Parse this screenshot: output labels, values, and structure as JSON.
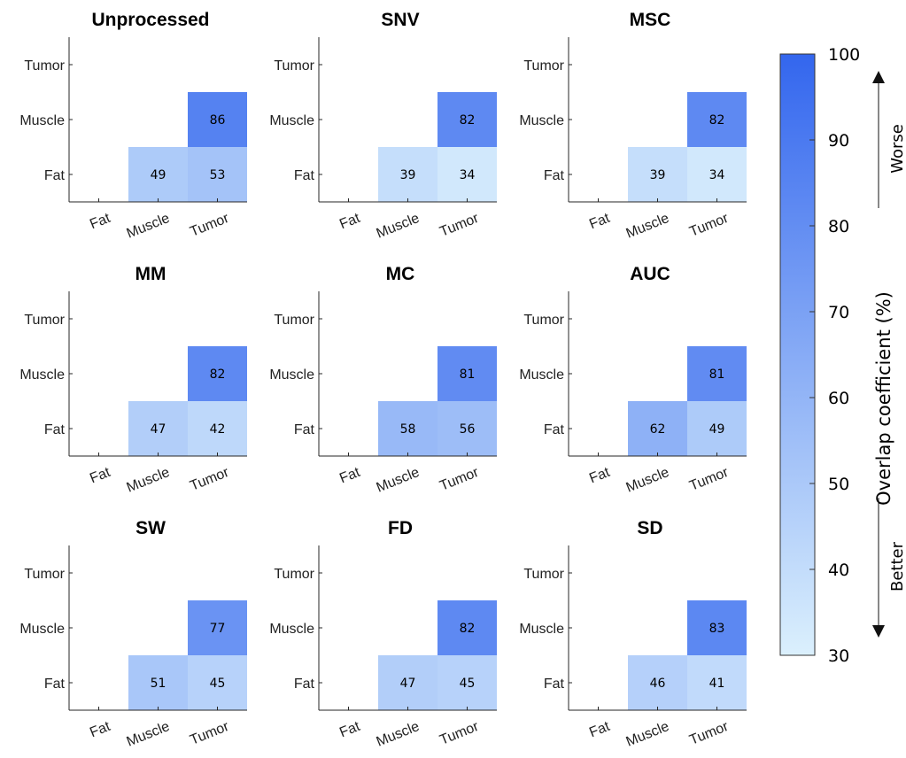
{
  "chart_data": {
    "type": "heatmap",
    "row_labels": [
      "Tumor",
      "Muscle",
      "Fat"
    ],
    "col_labels": [
      "Fat",
      "Muscle",
      "Tumor"
    ],
    "panels": [
      {
        "title": "Unprocessed",
        "fat_muscle": 49,
        "fat_tumor": 53,
        "muscle_tumor": 86
      },
      {
        "title": "SNV",
        "fat_muscle": 39,
        "fat_tumor": 34,
        "muscle_tumor": 82
      },
      {
        "title": "MSC",
        "fat_muscle": 39,
        "fat_tumor": 34,
        "muscle_tumor": 82
      },
      {
        "title": "MM",
        "fat_muscle": 47,
        "fat_tumor": 42,
        "muscle_tumor": 82
      },
      {
        "title": "MC",
        "fat_muscle": 58,
        "fat_tumor": 56,
        "muscle_tumor": 81
      },
      {
        "title": "AUC",
        "fat_muscle": 62,
        "fat_tumor": 49,
        "muscle_tumor": 81
      },
      {
        "title": "SW",
        "fat_muscle": 51,
        "fat_tumor": 45,
        "muscle_tumor": 77
      },
      {
        "title": "FD",
        "fat_muscle": 47,
        "fat_tumor": 45,
        "muscle_tumor": 82
      },
      {
        "title": "SD",
        "fat_muscle": 46,
        "fat_tumor": 41,
        "muscle_tumor": 83
      }
    ],
    "colorbar": {
      "label": "Overlap coefficient (%)",
      "range": [
        30,
        100
      ],
      "ticks": [
        "100",
        "90",
        "80",
        "70",
        "60",
        "50",
        "40",
        "30"
      ],
      "color_low": "#dbf0fd",
      "color_high": "#3366ee",
      "worse_label": "Worse",
      "better_label": "Better"
    }
  }
}
